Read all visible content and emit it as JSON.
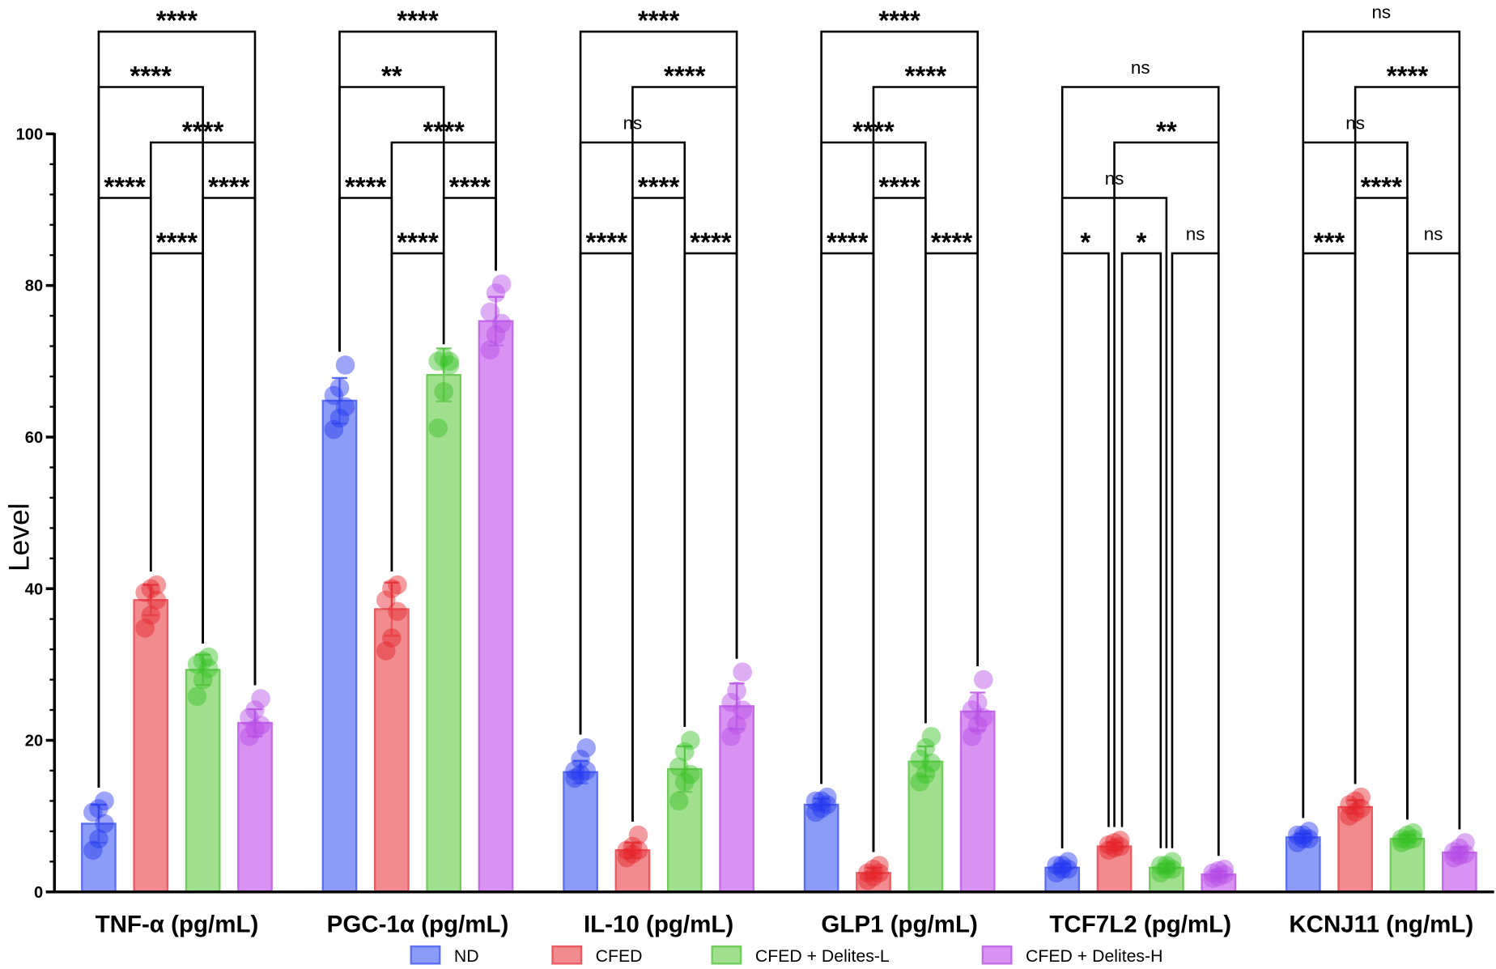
{
  "chart_data": {
    "type": "bar",
    "y_label": "Level",
    "ylim": [
      0,
      100
    ],
    "yticks": [
      0,
      20,
      40,
      60,
      80,
      100
    ],
    "minor_yticks": [
      4,
      8,
      12,
      16,
      24,
      28,
      32,
      36,
      44,
      48,
      52,
      56,
      64,
      68,
      72,
      76,
      84,
      88,
      92,
      96
    ],
    "categories": [
      "TNF-α (pg/mL)",
      "PGC-1α (pg/mL)",
      "IL-10 (pg/mL)",
      "GLP1 (pg/mL)",
      "TCF7L2 (pg/mL)",
      "KCNJ11 (ng/mL)"
    ],
    "series": [
      {
        "name": "ND",
        "color": "#8c9cf6",
        "edge": "#5b6ff2",
        "dot": "#2438f0",
        "values": [
          9,
          64.8,
          15.8,
          11.5,
          3.2,
          7.2
        ],
        "errors": [
          2.5,
          3,
          1.5,
          0.8,
          0.5,
          0.5
        ],
        "points": [
          [
            5.5,
            7,
            9,
            10.5,
            11,
            12
          ],
          [
            61,
            62.5,
            64,
            65.5,
            66.5,
            69.5
          ],
          [
            15,
            15.5,
            16,
            16,
            17.5,
            19
          ],
          [
            10.5,
            11,
            11.5,
            12,
            12,
            12.5
          ],
          [
            2.5,
            3,
            3,
            3.5,
            3.5,
            4
          ],
          [
            6.5,
            7,
            7,
            7.5,
            7.5,
            8
          ]
        ]
      },
      {
        "name": "CFED",
        "color": "#f18b90",
        "edge": "#ea5a60",
        "dot": "#e5232b",
        "values": [
          38.5,
          37.3,
          5.5,
          2.5,
          6,
          11.2
        ],
        "errors": [
          2,
          3.5,
          1,
          0.7,
          0.5,
          0.9
        ],
        "points": [
          [
            34.8,
            36.5,
            38.5,
            39.5,
            40,
            40.5
          ],
          [
            31.8,
            33.5,
            37,
            38.5,
            40,
            40.5
          ],
          [
            4.5,
            5,
            5.5,
            5.5,
            6,
            7.5
          ],
          [
            1.5,
            2,
            2.5,
            2.5,
            3,
            3.5
          ],
          [
            5.5,
            5.8,
            6,
            6.2,
            6.5,
            6.8
          ],
          [
            10,
            10.5,
            11,
            11.5,
            12,
            12.5
          ]
        ]
      },
      {
        "name": "CFED + Delites-L",
        "color": "#a0df8c",
        "edge": "#6fcd5a",
        "dot": "#38c125",
        "values": [
          29.3,
          68.2,
          16.2,
          17.2,
          3.2,
          7
        ],
        "errors": [
          2,
          3.5,
          3,
          2,
          0.5,
          0.5
        ],
        "points": [
          [
            25.8,
            28,
            29.5,
            30,
            30.5,
            31
          ],
          [
            61.2,
            66,
            69.5,
            70,
            70.5,
            70
          ],
          [
            12,
            14.5,
            15.5,
            16.5,
            18.5,
            20
          ],
          [
            14.5,
            15.5,
            17,
            17.5,
            19,
            20.5
          ],
          [
            2.5,
            3,
            3,
            3.5,
            3.5,
            4
          ],
          [
            6.5,
            6.8,
            7,
            7,
            7.5,
            7.8
          ]
        ]
      },
      {
        "name": "CFED + Delites-H",
        "color": "#d992f1",
        "edge": "#c46aea",
        "dot": "#b54be6",
        "values": [
          22.3,
          75.3,
          24.5,
          23.8,
          2.3,
          5.2
        ],
        "errors": [
          1.8,
          3.2,
          3,
          2.5,
          0.4,
          0.7
        ],
        "points": [
          [
            20.5,
            21.5,
            22,
            23,
            24,
            25.5
          ],
          [
            71.5,
            73.5,
            75,
            76.5,
            79,
            80.2
          ],
          [
            20.5,
            22,
            24,
            25,
            26.5,
            29
          ],
          [
            20.5,
            22,
            23,
            24,
            25,
            28
          ],
          [
            1.8,
            2,
            2.3,
            2.5,
            2.8,
            3
          ],
          [
            4.5,
            4.8,
            5,
            5.3,
            5.8,
            6.5
          ]
        ]
      }
    ],
    "comparisons": [
      [
        {
          "groups": [
            0,
            3
          ],
          "label": "****"
        },
        {
          "groups": [
            0,
            2
          ],
          "label": "****"
        },
        {
          "groups": [
            1,
            3
          ],
          "label": "****"
        },
        {
          "groups": [
            0,
            1
          ],
          "label": "****"
        },
        {
          "groups": [
            2,
            3
          ],
          "label": "****"
        },
        {
          "groups": [
            1,
            2
          ],
          "label": "****"
        }
      ],
      [
        {
          "groups": [
            0,
            3
          ],
          "label": "****"
        },
        {
          "groups": [
            0,
            2
          ],
          "label": "**"
        },
        {
          "groups": [
            1,
            3
          ],
          "label": "****"
        },
        {
          "groups": [
            0,
            1
          ],
          "label": "****"
        },
        {
          "groups": [
            2,
            3
          ],
          "label": "****"
        },
        {
          "groups": [
            1,
            2
          ],
          "label": "****"
        }
      ],
      [
        {
          "groups": [
            0,
            3
          ],
          "label": "****"
        },
        {
          "groups": [
            1,
            3
          ],
          "label": "****"
        },
        {
          "groups": [
            0,
            2
          ],
          "label": "ns"
        },
        {
          "groups": [
            1,
            2
          ],
          "label": "****"
        },
        {
          "groups": [
            0,
            1
          ],
          "label": "****"
        },
        {
          "groups": [
            2,
            3
          ],
          "label": "****"
        }
      ],
      [
        {
          "groups": [
            0,
            3
          ],
          "label": "****"
        },
        {
          "groups": [
            1,
            3
          ],
          "label": "****"
        },
        {
          "groups": [
            0,
            2
          ],
          "label": "****"
        },
        {
          "groups": [
            1,
            2
          ],
          "label": "****"
        },
        {
          "groups": [
            0,
            1
          ],
          "label": "****"
        },
        {
          "groups": [
            2,
            3
          ],
          "label": "****"
        }
      ],
      [
        {
          "groups": [
            0,
            3
          ],
          "label": "ns"
        },
        {
          "groups": [
            1,
            3
          ],
          "label": "**"
        },
        {
          "groups": [
            0,
            2
          ],
          "label": "ns"
        },
        {
          "groups": [
            0,
            1
          ],
          "label": "*"
        },
        {
          "groups": [
            1,
            2
          ],
          "label": "*"
        },
        {
          "groups": [
            2,
            3
          ],
          "label": "ns"
        }
      ],
      [
        {
          "groups": [
            0,
            3
          ],
          "label": "ns"
        },
        {
          "groups": [
            1,
            3
          ],
          "label": "****"
        },
        {
          "groups": [
            0,
            2
          ],
          "label": "ns"
        },
        {
          "groups": [
            1,
            2
          ],
          "label": "****"
        },
        {
          "groups": [
            0,
            1
          ],
          "label": "***"
        },
        {
          "groups": [
            2,
            3
          ],
          "label": "ns"
        }
      ]
    ]
  }
}
